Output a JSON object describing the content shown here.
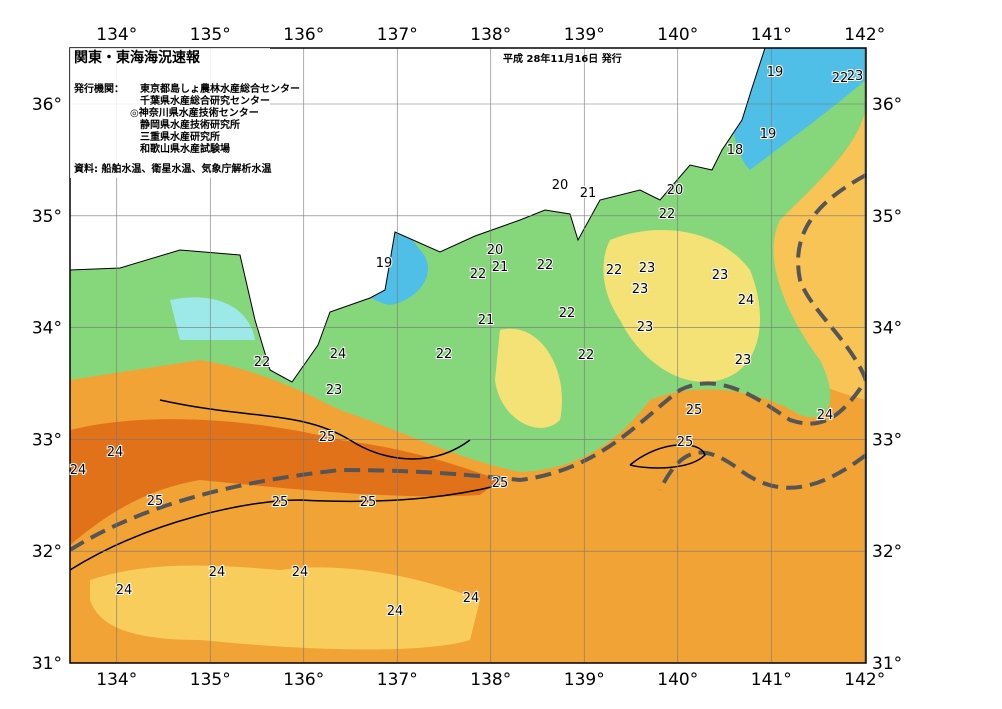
{
  "header": {
    "title": "関東・東海海況速報",
    "date": "平成 28年11月16日 発行",
    "issuer_label": "発行機関：",
    "issuers": [
      "東京都島しょ農林水産総合センター",
      "千葉県水産総合研究センター",
      "◎神奈川県水産技術センター",
      "静岡県水産技術研究所",
      "三重県水産研究所",
      "和歌山県水産試験場"
    ],
    "source": "資料: 船舶水温、衛星水温、気象庁解析水温"
  },
  "map": {
    "lon_ticks": [
      {
        "value": 134,
        "label": "134°"
      },
      {
        "value": 135,
        "label": "135°"
      },
      {
        "value": 136,
        "label": "136°"
      },
      {
        "value": 137,
        "label": "137°"
      },
      {
        "value": 138,
        "label": "138°"
      },
      {
        "value": 139,
        "label": "139°"
      },
      {
        "value": 140,
        "label": "140°"
      },
      {
        "value": 141,
        "label": "141°"
      },
      {
        "value": 142,
        "label": "142°"
      }
    ],
    "lat_ticks": [
      {
        "value": 31,
        "label": "31°"
      },
      {
        "value": 32,
        "label": "32°"
      },
      {
        "value": 33,
        "label": "33°"
      },
      {
        "value": 34,
        "label": "34°"
      },
      {
        "value": 35,
        "label": "35°"
      },
      {
        "value": 36,
        "label": "36°"
      }
    ],
    "isotherm_labels": [
      19,
      22,
      23,
      19,
      18,
      20,
      21,
      20,
      22,
      19,
      20,
      21,
      22,
      22,
      22,
      23,
      23,
      23,
      24,
      22,
      21,
      23,
      22,
      22,
      24,
      22,
      23,
      23,
      25,
      24,
      25,
      25,
      24,
      24,
      25,
      25,
      25,
      25,
      24,
      24,
      24,
      24,
      24
    ]
  }
}
